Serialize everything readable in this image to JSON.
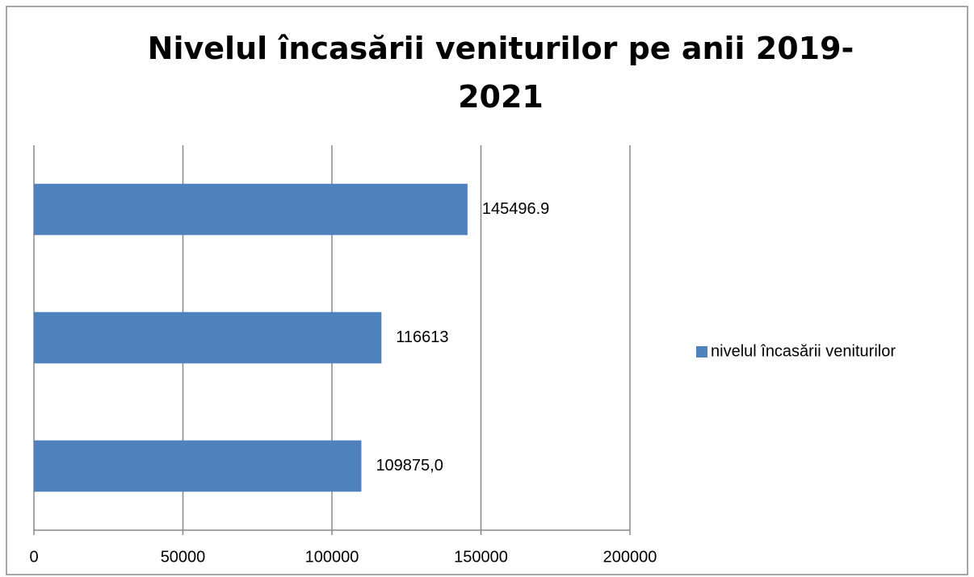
{
  "chart_data": {
    "type": "hbar",
    "title": "Nivelul încasării veniturilor pe anii 2019-2021",
    "categories": [
      null,
      null,
      null
    ],
    "series": [
      {
        "name": "nivelul încasării veniturilor",
        "color": "#4f81bd",
        "values": [
          109875,
          116613,
          145496.9
        ],
        "value_labels": [
          "109875,0",
          "116613",
          "145496.9"
        ]
      }
    ],
    "xlim": [
      0,
      200000
    ],
    "xticks": [
      0,
      50000,
      100000,
      150000,
      200000
    ],
    "grid": true,
    "legend": "right"
  }
}
